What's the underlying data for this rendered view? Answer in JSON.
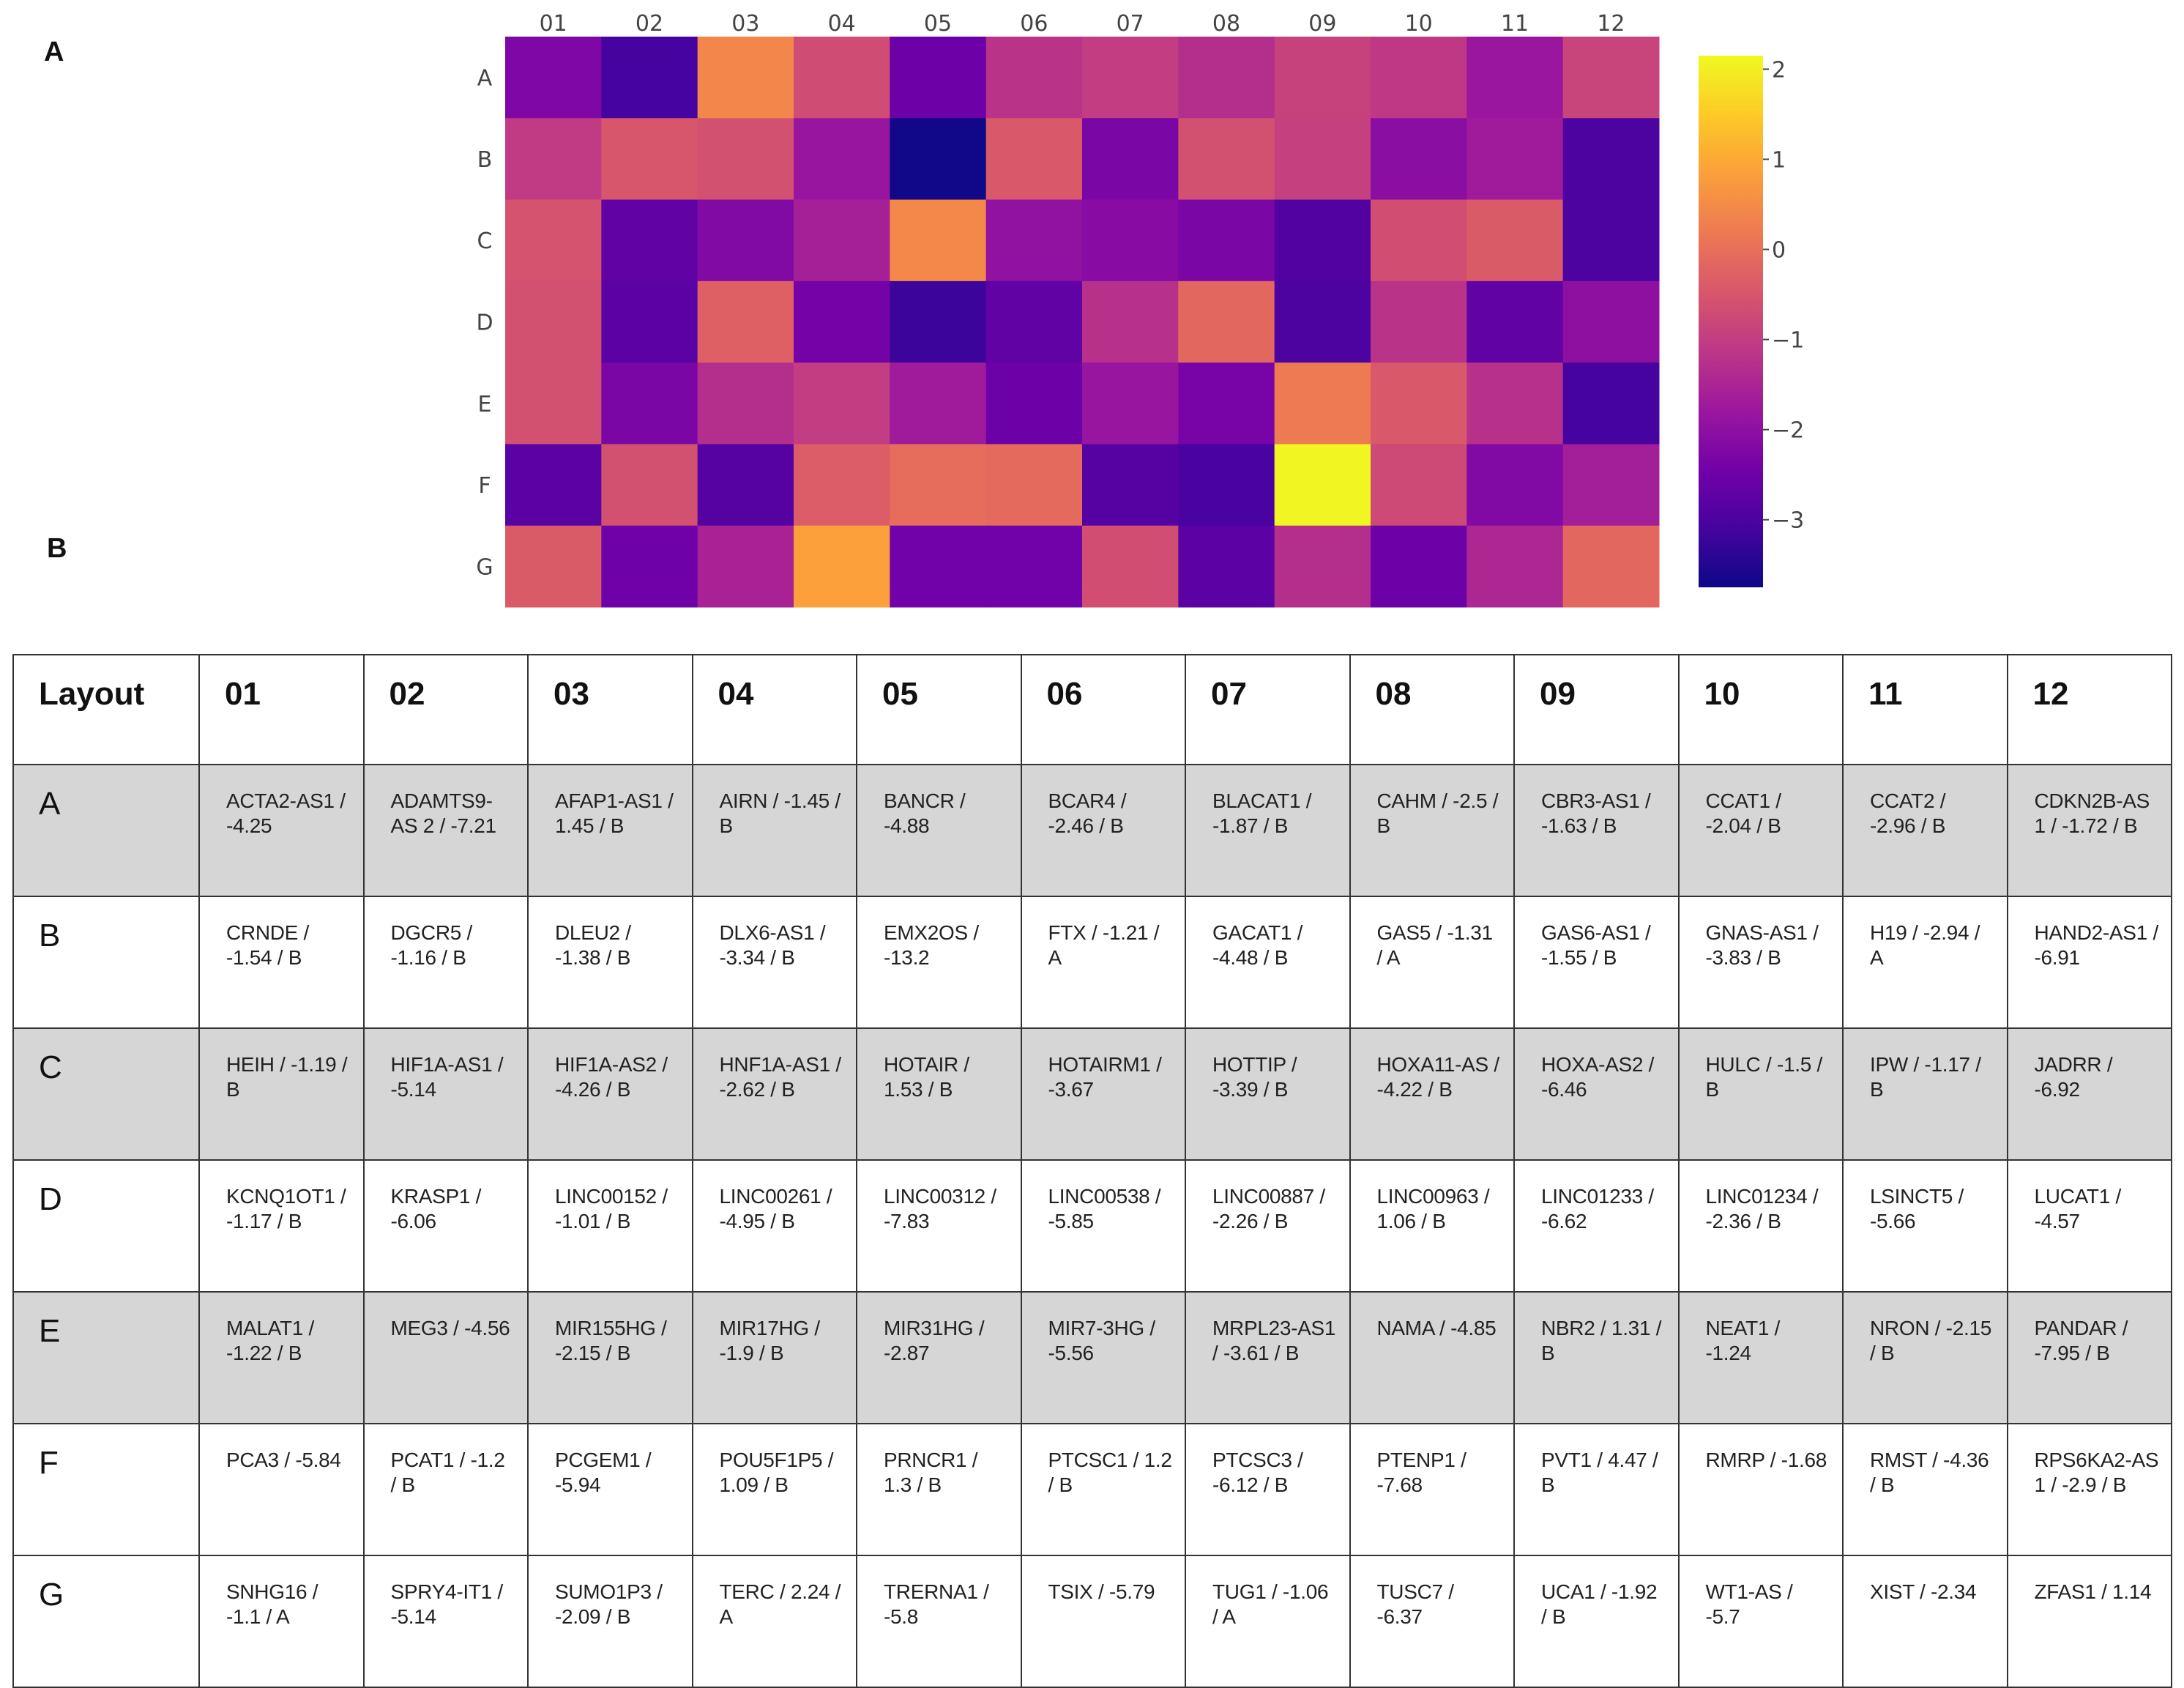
{
  "panel_labels": {
    "a": "A",
    "b": "B"
  },
  "chart_data": {
    "type": "heatmap",
    "columns": [
      "01",
      "02",
      "03",
      "04",
      "05",
      "06",
      "07",
      "08",
      "09",
      "10",
      "11",
      "12"
    ],
    "rows": [
      "A",
      "B",
      "C",
      "D",
      "E",
      "F",
      "G"
    ],
    "values": [
      [
        -2.25,
        -3.1,
        0.4,
        -0.7,
        -2.55,
        -1.2,
        -1.0,
        -1.3,
        -0.9,
        -1.1,
        -1.8,
        -0.85
      ],
      [
        -1.05,
        -0.5,
        -0.6,
        -1.85,
        -3.7,
        -0.45,
        -2.3,
        -0.6,
        -0.95,
        -2.05,
        -1.7,
        -3.0
      ],
      [
        -0.55,
        -2.7,
        -2.2,
        -1.6,
        0.45,
        -1.95,
        -2.1,
        -2.3,
        -2.9,
        -0.65,
        -0.4,
        -3.0
      ],
      [
        -0.6,
        -2.8,
        -0.3,
        -2.4,
        -3.2,
        -2.7,
        -1.25,
        -0.15,
        -3.0,
        -1.2,
        -2.7,
        -2.0
      ],
      [
        -0.6,
        -2.3,
        -1.3,
        -1.0,
        -1.7,
        -2.55,
        -1.85,
        -2.35,
        0.2,
        -0.45,
        -1.25,
        -3.1
      ],
      [
        -2.8,
        -0.6,
        -2.85,
        -0.35,
        -0.05,
        -0.1,
        -2.85,
        -3.05,
        2.1,
        -0.75,
        -2.2,
        -1.65
      ],
      [
        -0.4,
        -2.5,
        -1.55,
        0.85,
        -2.45,
        -2.45,
        -0.65,
        -2.8,
        -1.3,
        -2.55,
        -1.45,
        -0.15
      ]
    ],
    "colorbar": {
      "min": -3.75,
      "max": 2.15,
      "ticks": [
        "2",
        "1",
        "0",
        "−1",
        "−2",
        "−3"
      ],
      "tick_values": [
        2,
        1,
        0,
        -1,
        -2,
        -3
      ]
    },
    "colorscale": [
      "#0d0887",
      "#46039f",
      "#7201a8",
      "#9c179e",
      "#bd3786",
      "#d8576b",
      "#ed7953",
      "#fb9f3a",
      "#fdca26",
      "#f0f921"
    ]
  },
  "table": {
    "header": [
      "Layout",
      "01",
      "02",
      "03",
      "04",
      "05",
      "06",
      "07",
      "08",
      "09",
      "10",
      "11",
      "12"
    ],
    "rows": [
      {
        "label": "A",
        "shaded": true,
        "cells": [
          "ACTA2-AS1 / -4.25",
          "ADAMTS9-AS 2 / -7.21",
          "AFAP1-AS1 / 1.45 / B",
          "AIRN / -1.45 / B",
          "BANCR / -4.88",
          "BCAR4 / -2.46 / B",
          "BLACAT1 / -1.87 / B",
          "CAHM / -2.5 / B",
          "CBR3-AS1 / -1.63 / B",
          "CCAT1 / -2.04 / B",
          "CCAT2 / -2.96 / B",
          "CDKN2B-AS 1 / -1.72 / B"
        ]
      },
      {
        "label": "B",
        "shaded": false,
        "cells": [
          "CRNDE / -1.54 / B",
          "DGCR5 / -1.16 / B",
          "DLEU2 / -1.38 / B",
          "DLX6-AS1 / -3.34 / B",
          "EMX2OS / -13.2",
          "FTX / -1.21 / A",
          "GACAT1 / -4.48 / B",
          "GAS5 / -1.31 / A",
          "GAS6-AS1 / -1.55 / B",
          "GNAS-AS1 / -3.83 / B",
          "H19 / -2.94 / A",
          "HAND2-AS1 / -6.91"
        ]
      },
      {
        "label": "C",
        "shaded": true,
        "cells": [
          "HEIH / -1.19 / B",
          "HIF1A-AS1 / -5.14",
          "HIF1A-AS2 / -4.26 / B",
          "HNF1A-AS1 / -2.62 / B",
          "HOTAIR / 1.53 / B",
          "HOTAIRM1 / -3.67",
          "HOTTIP / -3.39 / B",
          "HOXA11-AS / -4.22 / B",
          "HOXA-AS2 / -6.46",
          "HULC / -1.5 / B",
          "IPW / -1.17 / B",
          "JADRR / -6.92"
        ]
      },
      {
        "label": "D",
        "shaded": false,
        "cells": [
          "KCNQ1OT1 / -1.17 / B",
          "KRASP1 / -6.06",
          "LINC00152 / -1.01 / B",
          "LINC00261 / -4.95 / B",
          "LINC00312 / -7.83",
          "LINC00538 / -5.85",
          "LINC00887 / -2.26 / B",
          "LINC00963 / 1.06 / B",
          "LINC01233 / -6.62",
          "LINC01234 / -2.36 / B",
          "LSINCT5 / -5.66",
          "LUCAT1 / -4.57"
        ]
      },
      {
        "label": "E",
        "shaded": true,
        "cells": [
          "MALAT1 / -1.22 / B",
          "MEG3 / -4.56",
          "MIR155HG / -2.15 / B",
          "MIR17HG / -1.9 / B",
          "MIR31HG / -2.87",
          "MIR7-3HG / -5.56",
          "MRPL23-AS1 / -3.61 / B",
          "NAMA / -4.85",
          "NBR2 / 1.31 / B",
          "NEAT1 / -1.24",
          "NRON / -2.15 / B",
          "PANDAR / -7.95 / B"
        ]
      },
      {
        "label": "F",
        "shaded": false,
        "cells": [
          "PCA3 / -5.84",
          "PCAT1 / -1.2 / B",
          "PCGEM1 / -5.94",
          "POU5F1P5 / 1.09 / B",
          "PRNCR1 / 1.3 / B",
          "PTCSC1 / 1.2 / B",
          "PTCSC3 / -6.12 / B",
          "PTENP1 / -7.68",
          "PVT1 / 4.47 / B",
          "RMRP / -1.68",
          "RMST / -4.36 / B",
          "RPS6KA2-AS 1 / -2.9 / B"
        ]
      },
      {
        "label": "G",
        "shaded": false,
        "cells": [
          "SNHG16 / -1.1 / A",
          "SPRY4-IT1 / -5.14",
          "SUMO1P3 / -2.09 / B",
          "TERC / 2.24 / A",
          "TRERNA1 / -5.8",
          "TSIX / -5.79",
          "TUG1 / -1.06 / A",
          "TUSC7 / -6.37",
          "UCA1 / -1.92 / B",
          "WT1-AS / -5.7",
          "XIST / -2.34",
          "ZFAS1 / 1.14"
        ]
      }
    ]
  }
}
